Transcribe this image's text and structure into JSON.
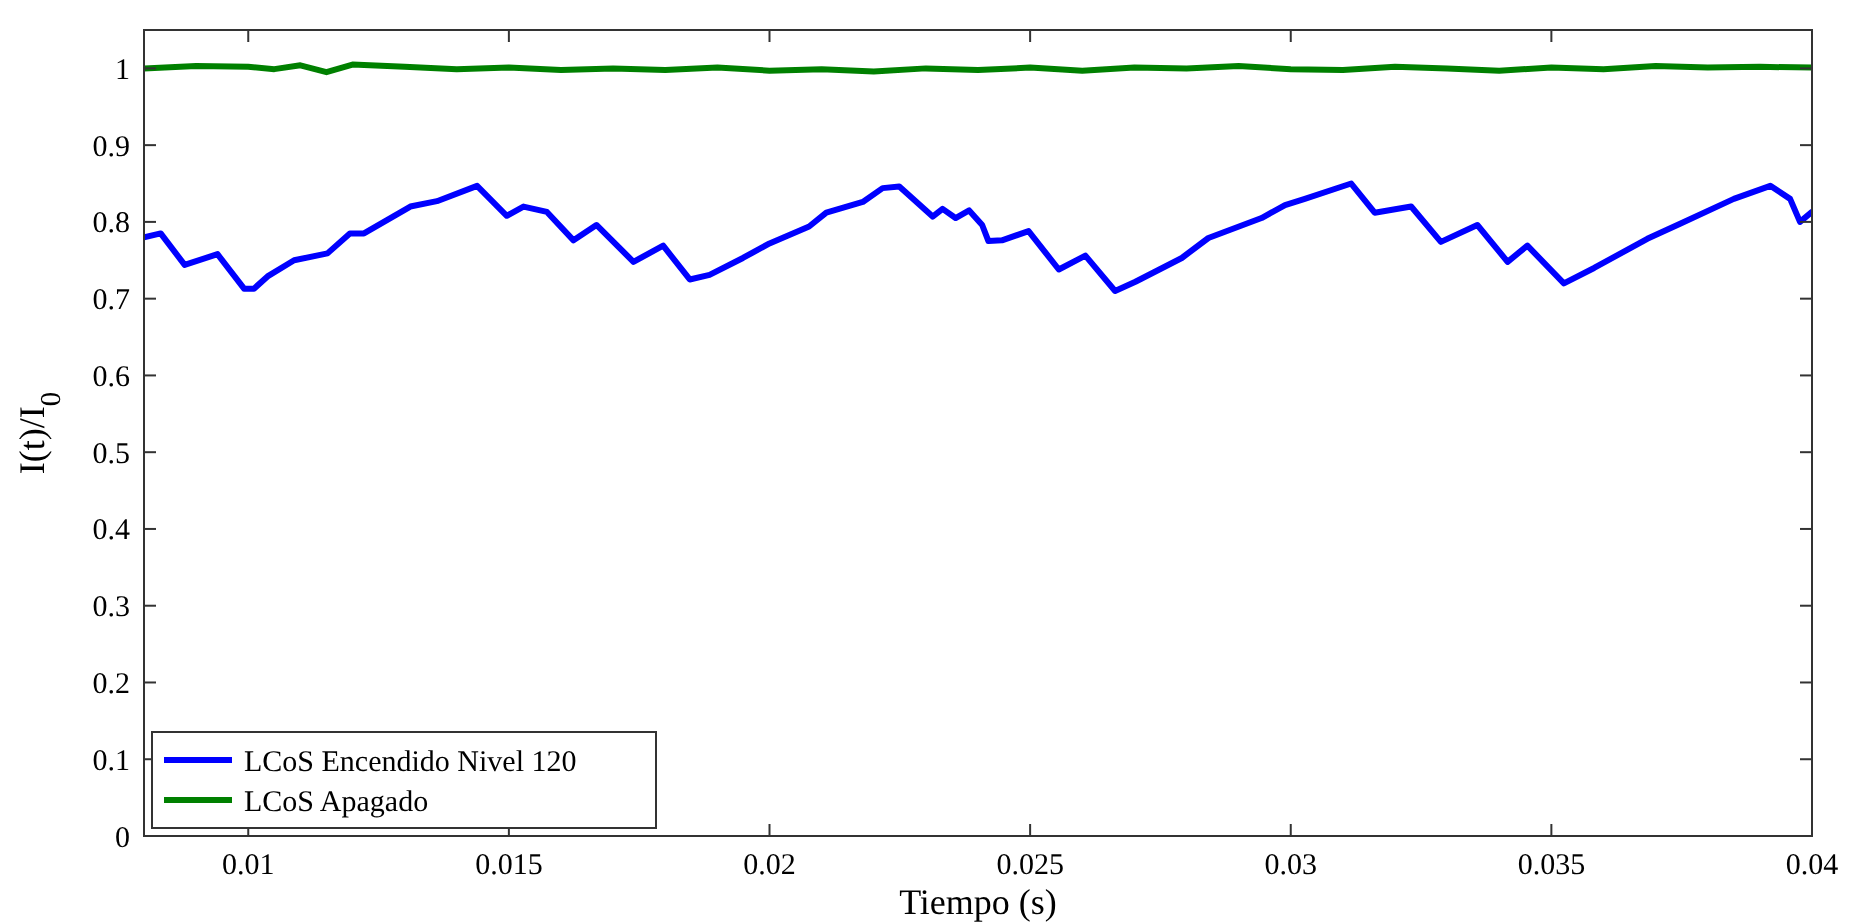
{
  "chart_data": {
    "type": "line",
    "xlabel": "Tiempo (s)",
    "ylabel": "I(t)/I$_{0}$",
    "xlim": [
      0.008,
      0.04
    ],
    "ylim": [
      0,
      1.05
    ],
    "xticks": [
      0.01,
      0.015,
      0.02,
      0.025,
      0.03,
      0.035,
      0.04
    ],
    "yticks": [
      0,
      0.1,
      0.2,
      0.3,
      0.4,
      0.5,
      0.6,
      0.7,
      0.8,
      0.9,
      1
    ],
    "grid": false,
    "legend": "bottom left",
    "marker": "none",
    "line_style": "solid",
    "series": [
      {
        "name": "LCoS Encendido Nivel 120",
        "color": "#0000ff",
        "x": [
          0.008,
          0.00832,
          0.00878,
          0.00941,
          0.00992,
          0.01011,
          0.01037,
          0.01088,
          0.01152,
          0.01195,
          0.01222,
          0.01311,
          0.01362,
          0.01439,
          0.01496,
          0.01528,
          0.01573,
          0.01624,
          0.01668,
          0.01739,
          0.01796,
          0.01847,
          0.01885,
          0.01949,
          0.02,
          0.02076,
          0.02109,
          0.02179,
          0.02217,
          0.02249,
          0.02313,
          0.02332,
          0.02357,
          0.02383,
          0.02408,
          0.0242,
          0.02446,
          0.02497,
          0.02555,
          0.02606,
          0.02663,
          0.02702,
          0.02791,
          0.02842,
          0.02944,
          0.02989,
          0.03027,
          0.03116,
          0.03161,
          0.03231,
          0.03288,
          0.03358,
          0.03416,
          0.03454,
          0.03524,
          0.03582,
          0.03684,
          0.03748,
          0.0385,
          0.0392,
          0.03958,
          0.03977,
          0.04
        ],
        "values": [
          0.78,
          0.785,
          0.744,
          0.758,
          0.713,
          0.713,
          0.729,
          0.75,
          0.759,
          0.785,
          0.785,
          0.82,
          0.827,
          0.847,
          0.808,
          0.82,
          0.813,
          0.776,
          0.796,
          0.748,
          0.769,
          0.725,
          0.731,
          0.753,
          0.772,
          0.794,
          0.812,
          0.826,
          0.844,
          0.846,
          0.807,
          0.817,
          0.805,
          0.815,
          0.796,
          0.775,
          0.776,
          0.788,
          0.738,
          0.756,
          0.71,
          0.722,
          0.753,
          0.779,
          0.805,
          0.822,
          0.83,
          0.85,
          0.812,
          0.82,
          0.774,
          0.796,
          0.748,
          0.769,
          0.72,
          0.74,
          0.778,
          0.798,
          0.83,
          0.847,
          0.83,
          0.8,
          0.813
        ]
      },
      {
        "name": "LCoS Apagado",
        "color": "#008000",
        "x": [
          0.008,
          0.009,
          0.01,
          0.0105,
          0.011,
          0.0115,
          0.012,
          0.013,
          0.014,
          0.015,
          0.016,
          0.017,
          0.018,
          0.019,
          0.02,
          0.021,
          0.022,
          0.023,
          0.024,
          0.025,
          0.026,
          0.027,
          0.028,
          0.029,
          0.03,
          0.031,
          0.032,
          0.033,
          0.034,
          0.035,
          0.036,
          0.037,
          0.038,
          0.039,
          0.04
        ],
        "values": [
          1.0,
          1.003,
          1.002,
          0.999,
          1.004,
          0.995,
          1.005,
          1.002,
          0.999,
          1.001,
          0.998,
          1.0,
          0.998,
          1.001,
          0.997,
          0.999,
          0.996,
          1.0,
          0.998,
          1.001,
          0.997,
          1.001,
          1.0,
          1.003,
          0.999,
          0.998,
          1.002,
          1.0,
          0.997,
          1.001,
          0.999,
          1.003,
          1.001,
          1.002,
          1.001
        ]
      }
    ]
  }
}
